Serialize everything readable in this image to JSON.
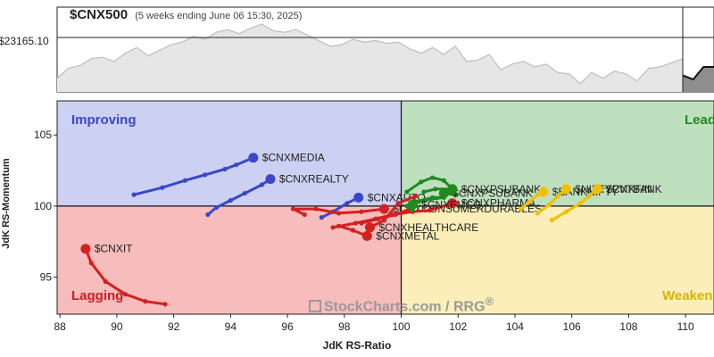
{
  "header": {
    "title": "$CNX500",
    "subtitle": "(5 weeks ending June 06 15:30, 2025)",
    "price_label": "$23165.10"
  },
  "watermark": {
    "brand": "StockCharts.com",
    "sep": "/",
    "product": "RRG",
    "mark": "®"
  },
  "quadrants": {
    "improving": {
      "label": "Improving",
      "color": "#3a47c8",
      "bg": "#ccd0f2"
    },
    "leading": {
      "label": "Lead",
      "color": "#1f8a1f",
      "bg": "#bfe0bf"
    },
    "lagging": {
      "label": "Lagging",
      "color": "#cc2020",
      "bg": "#f7bcbc"
    },
    "weakening": {
      "label": "Weaken",
      "color": "#d8b400",
      "bg": "#fbeeb8"
    }
  },
  "chart_data": [
    {
      "type": "area",
      "title": "$CNX500",
      "reference_value": 23165.1,
      "values": [
        21700,
        22050,
        22150,
        22400,
        22450,
        22300,
        22600,
        22800,
        22500,
        22700,
        22900,
        23000,
        23200,
        23100,
        23350,
        23450,
        23300,
        23500,
        23650,
        23400,
        23350,
        23450,
        23250,
        23050,
        22850,
        22900,
        23100,
        23000,
        23050,
        22950,
        23000,
        22750,
        22600,
        22800,
        22550,
        22850,
        22300,
        22350,
        22550,
        22000,
        22200,
        22300,
        22100,
        22200,
        21900,
        21850,
        21500,
        21900,
        21700,
        21950,
        21850,
        21600,
        22050,
        22100,
        22250,
        22400
      ],
      "highlight_values": [
        21800,
        21650,
        22100,
        22100
      ],
      "color": "#9e9e9e"
    },
    {
      "type": "scatter",
      "title": "",
      "xlabel": "JdK RS-Ratio",
      "ylabel": "JdK RS-Momentum",
      "xlim": [
        87.9,
        111.0
      ],
      "ylim": [
        92.4,
        107.4
      ],
      "center": [
        100,
        100
      ],
      "x_ticks": [
        "88",
        "90",
        "92",
        "94",
        "96",
        "98",
        "100",
        "102",
        "104",
        "106",
        "108",
        "110"
      ],
      "x_tick_values": [
        88,
        90,
        92,
        94,
        96,
        98,
        100,
        102,
        104,
        106,
        108,
        110
      ],
      "y_ticks": [
        "95",
        "100",
        "105"
      ],
      "y_tick_values": [
        95,
        100,
        105
      ],
      "grid": false,
      "series": [
        {
          "name": "$CNXMEDIA",
          "color": "#3a47c8",
          "label_dx": 0.25,
          "label_dy": 0,
          "points": [
            [
              90.6,
              100.8
            ],
            [
              91.6,
              101.3
            ],
            [
              92.4,
              101.8
            ],
            [
              93.1,
              102.2
            ],
            [
              93.8,
              102.6
            ],
            [
              94.2,
              102.9
            ],
            [
              94.8,
              103.4
            ]
          ]
        },
        {
          "name": "$CNXREALTY",
          "color": "#3a47c8",
          "label_dx": 0.25,
          "label_dy": 0,
          "points": [
            [
              93.2,
              99.4
            ],
            [
              93.5,
              99.9
            ],
            [
              94.0,
              100.4
            ],
            [
              94.5,
              100.9
            ],
            [
              95.1,
              101.5
            ],
            [
              95.4,
              101.9
            ]
          ]
        },
        {
          "name": "$CNXAUTO",
          "color": "#3a47c8",
          "label_dx": 0.25,
          "label_dy": 0,
          "points": [
            [
              97.2,
              99.2
            ],
            [
              97.6,
              99.6
            ],
            [
              98.1,
              100.2
            ],
            [
              98.5,
              100.6
            ]
          ]
        },
        {
          "name": "$CNXIT",
          "color": "#d42020",
          "label_dx": 0.25,
          "label_dy": 0,
          "points": [
            [
              91.7,
              93.1
            ],
            [
              91.0,
              93.3
            ],
            [
              90.3,
              93.8
            ],
            [
              89.6,
              94.7
            ],
            [
              89.1,
              96.0
            ],
            [
              88.9,
              97.0
            ]
          ]
        },
        {
          "name": "$CNXCONSUMERDURABLES",
          "color": "#d42020",
          "label_dx": 0.25,
          "label_dy": 0,
          "points": [
            [
              96.6,
              99.4
            ],
            [
              96.2,
              99.8
            ],
            [
              97.0,
              99.8
            ],
            [
              97.8,
              99.5
            ],
            [
              98.6,
              99.6
            ],
            [
              99.4,
              99.8
            ]
          ]
        },
        {
          "name": "$CNXPHARMA",
          "color": "#d42020",
          "label_dx": 0.25,
          "label_dy": 0,
          "points": [
            [
              97.6,
              98.5
            ],
            [
              98.4,
              98.8
            ],
            [
              99.1,
              99.1
            ],
            [
              99.7,
              99.4
            ],
            [
              100.4,
              99.6
            ],
            [
              101.0,
              99.7
            ],
            [
              101.8,
              100.2
            ]
          ]
        },
        {
          "name": "$CNXHEALTHCARE",
          "color": "#d42020",
          "label_dx": 0.25,
          "label_dy": 0,
          "points": [
            [
              98.6,
              98.8
            ],
            [
              99.2,
              99.1
            ],
            [
              99.8,
              99.4
            ],
            [
              100.3,
              99.8
            ],
            [
              100.5,
              100.7
            ],
            [
              99.9,
              100.2
            ],
            [
              99.4,
              99.0
            ],
            [
              98.9,
              98.5
            ]
          ]
        },
        {
          "name": "$CNXMETAL",
          "color": "#d42020",
          "label_dx": 0.25,
          "label_dy": 0,
          "points": [
            [
              97.8,
              98.6
            ],
            [
              98.3,
              98.3
            ],
            [
              98.8,
              97.9
            ]
          ]
        },
        {
          "name": "$CNXFMCG",
          "color": "#1f8a1f",
          "label_dx": 0.25,
          "label_dy": 0,
          "points": [
            [
              100.4,
              99.7
            ],
            [
              100.2,
              100.0
            ],
            [
              100.5,
              100.3
            ],
            [
              101.1,
              100.6
            ],
            [
              101.5,
              100.6
            ],
            [
              100.8,
              100.4
            ],
            [
              100.4,
              100.1
            ]
          ]
        },
        {
          "name": "$CNXPSUBANK",
          "color": "#1f8a1f",
          "label_dx": 0.25,
          "label_dy": 0,
          "points": [
            [
              100.2,
              101.0
            ],
            [
              100.7,
              101.7
            ],
            [
              101.1,
              102.0
            ],
            [
              101.5,
              101.8
            ],
            [
              101.8,
              101.2
            ],
            [
              101.9,
              100.8
            ],
            [
              101.5,
              100.9
            ]
          ]
        },
        {
          "name": "$CNXPSUBANK",
          "color": "#1f8a1f",
          "label_dx": 0.25,
          "label_dy": 0,
          "points": [
            [
              100.8,
              101.0
            ],
            [
              101.2,
              101.2
            ],
            [
              101.8,
              101.2
            ]
          ]
        },
        {
          "name": "$BANKNIFTY",
          "color": "#f0c000",
          "label_dx": 0.25,
          "label_dy": 0,
          "points": [
            [
              104.2,
              99.8
            ],
            [
              104.5,
              100.3
            ],
            [
              104.8,
              100.8
            ],
            [
              105.0,
              101.0
            ]
          ]
        },
        {
          "name": "$NIFTYPVTBANK",
          "color": "#f0c000",
          "label_dx": 0.25,
          "label_dy": 0,
          "points": [
            [
              104.8,
              99.5
            ],
            [
              105.2,
              100.1
            ],
            [
              105.5,
              100.7
            ],
            [
              105.8,
              101.2
            ]
          ]
        },
        {
          "name": "$CNXFIN",
          "color": "#f0c000",
          "label_dx": 0.25,
          "label_dy": 0,
          "points": [
            [
              105.3,
              99.0
            ],
            [
              105.8,
              99.6
            ],
            [
              106.3,
              100.2
            ],
            [
              106.6,
              100.7
            ],
            [
              106.9,
              101.2
            ]
          ]
        }
      ]
    }
  ]
}
